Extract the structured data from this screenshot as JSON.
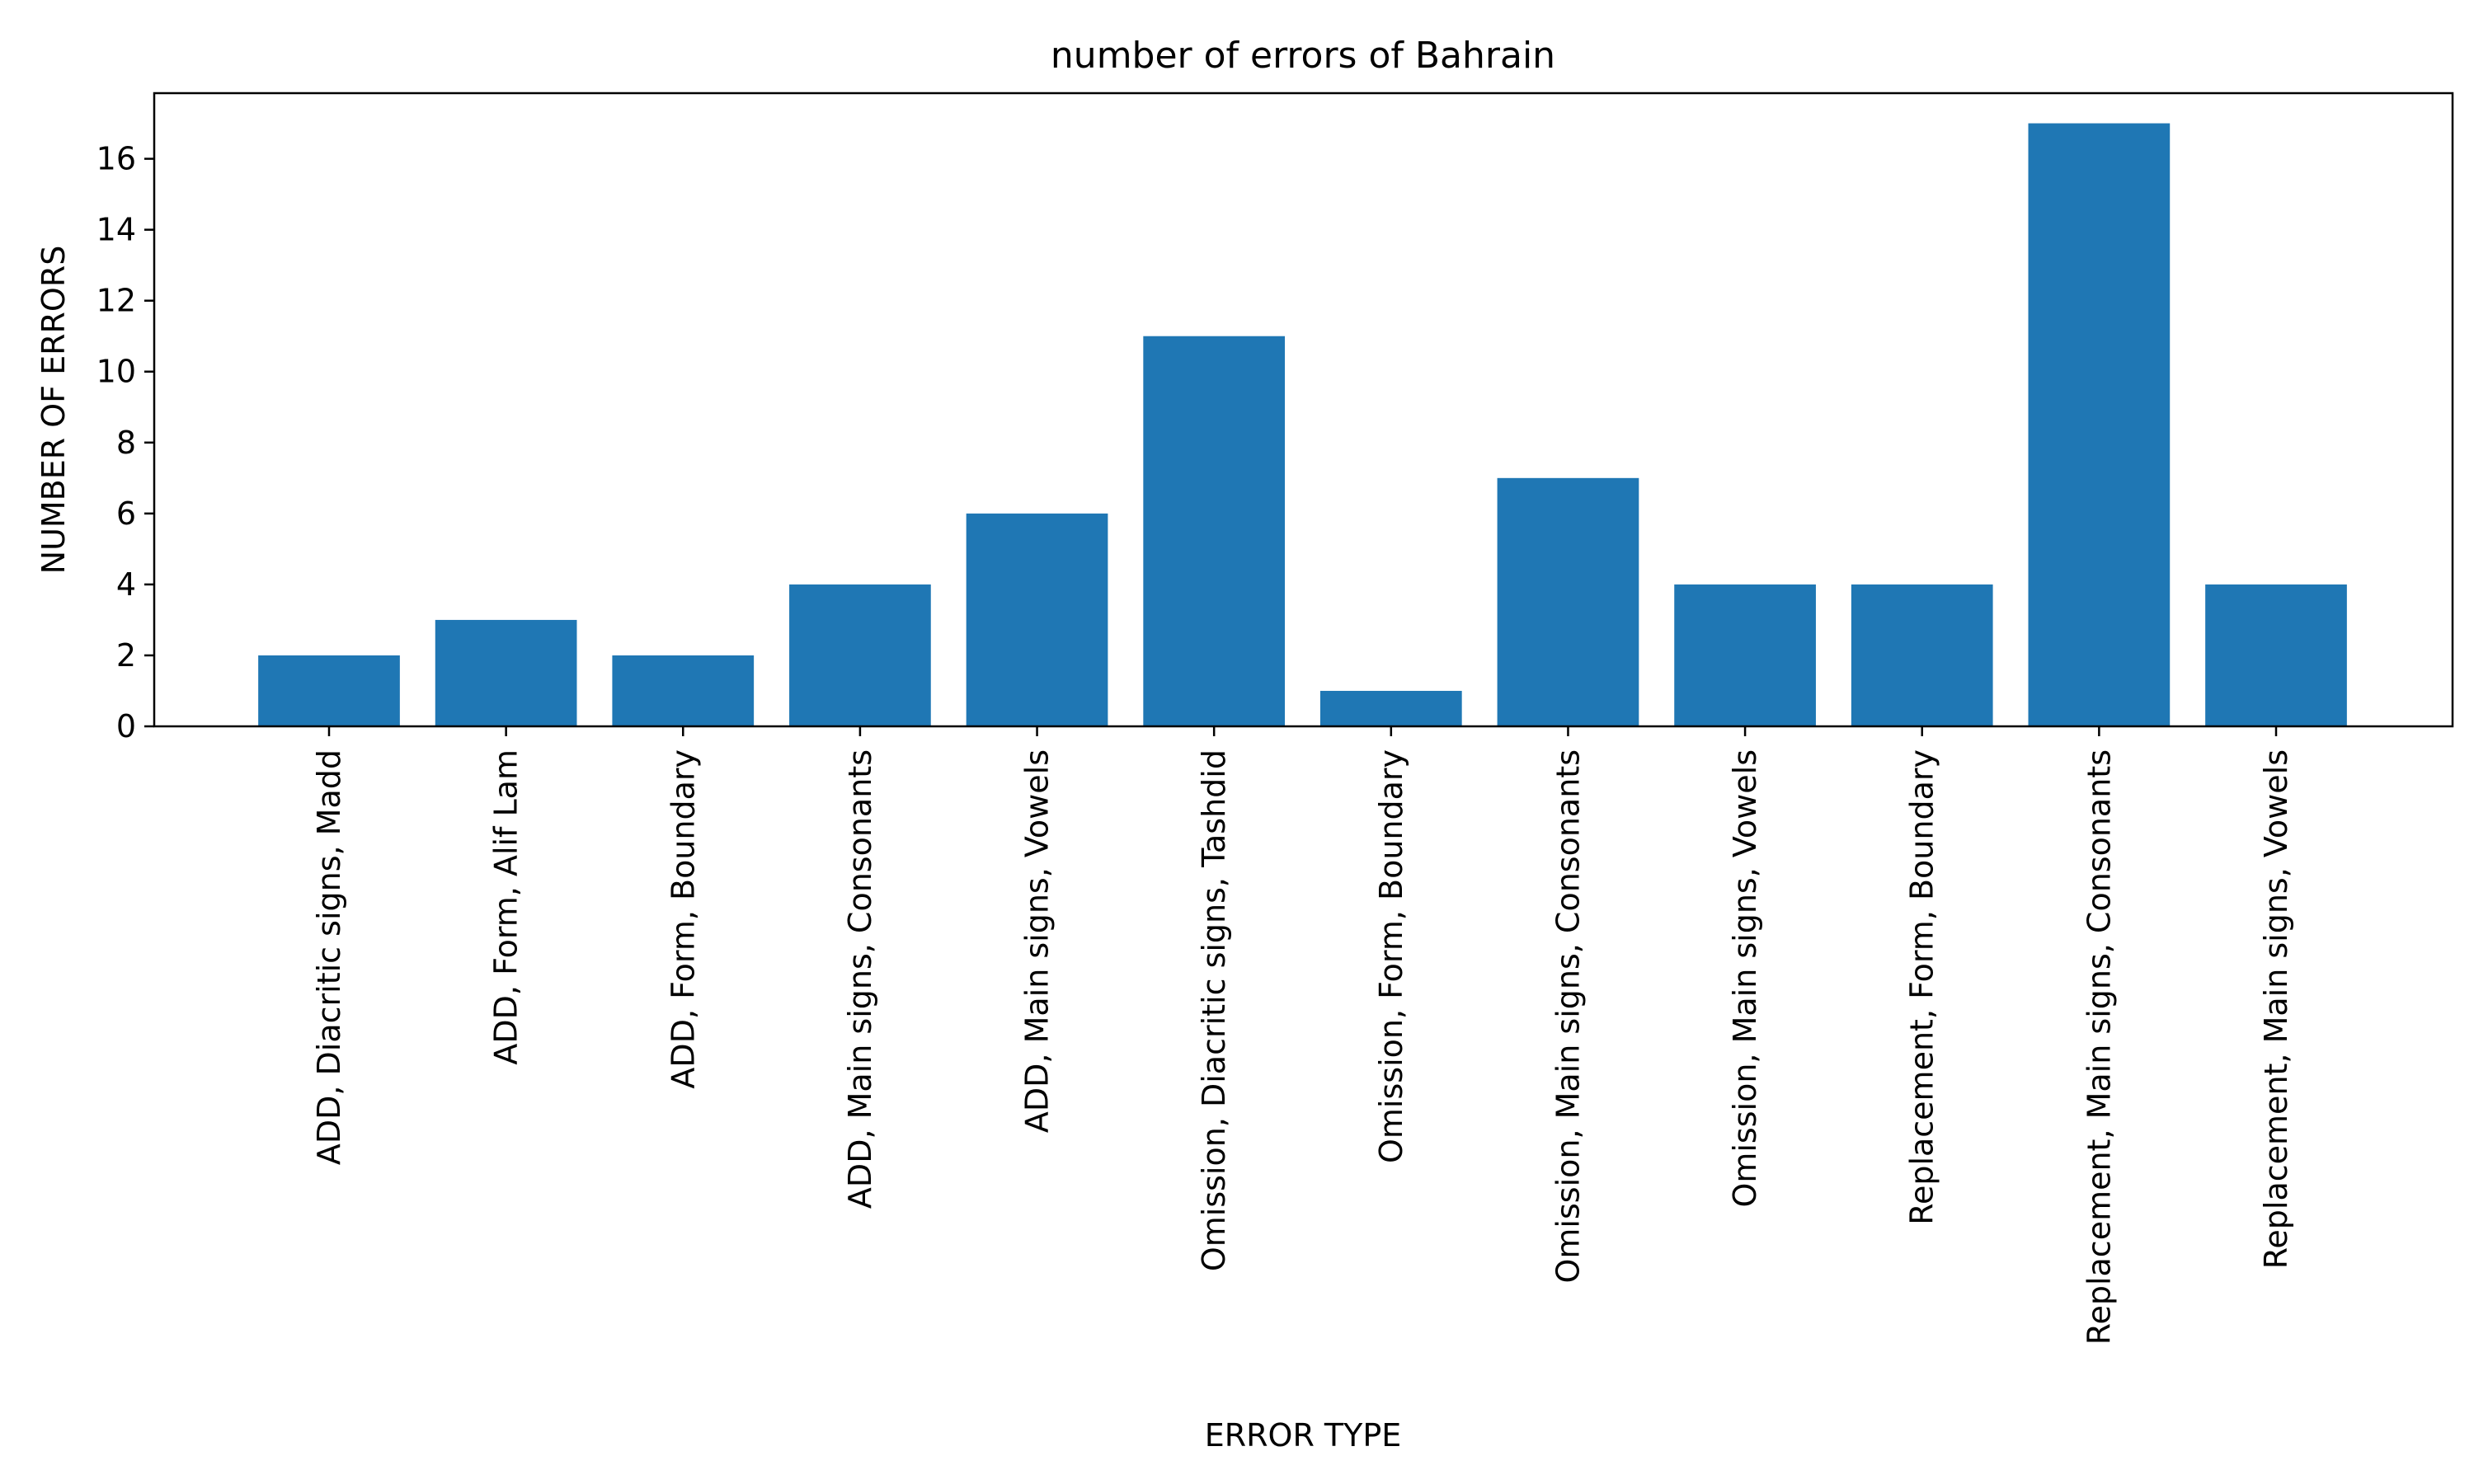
{
  "chart_data": {
    "type": "bar",
    "title": "number of errors of Bahrain",
    "xlabel": "ERROR TYPE",
    "ylabel": "NUMBER OF ERRORS",
    "categories": [
      "ADD, Diacritic signs, Madd",
      "ADD, Form, Alif Lam",
      "ADD, Form, Boundary",
      "ADD, Main signs, Consonants",
      "ADD, Main signs, Vowels",
      "Omission, Diacritic signs, Tashdid",
      "Omission, Form, Boundary",
      "Omission, Main signs, Consonants",
      "Omission, Main signs, Vowels",
      "Replacement, Form, Boundary",
      "Replacement, Main signs, Consonants",
      "Replacement, Main signs, Vowels"
    ],
    "values": [
      2,
      3,
      2,
      4,
      6,
      11,
      1,
      7,
      4,
      4,
      17,
      4
    ],
    "ylim": [
      0,
      17.85
    ],
    "yticks": [
      0,
      2,
      4,
      6,
      8,
      10,
      12,
      14,
      16
    ],
    "bar_color": "#1f77b4",
    "grid": false,
    "legend": "none"
  }
}
